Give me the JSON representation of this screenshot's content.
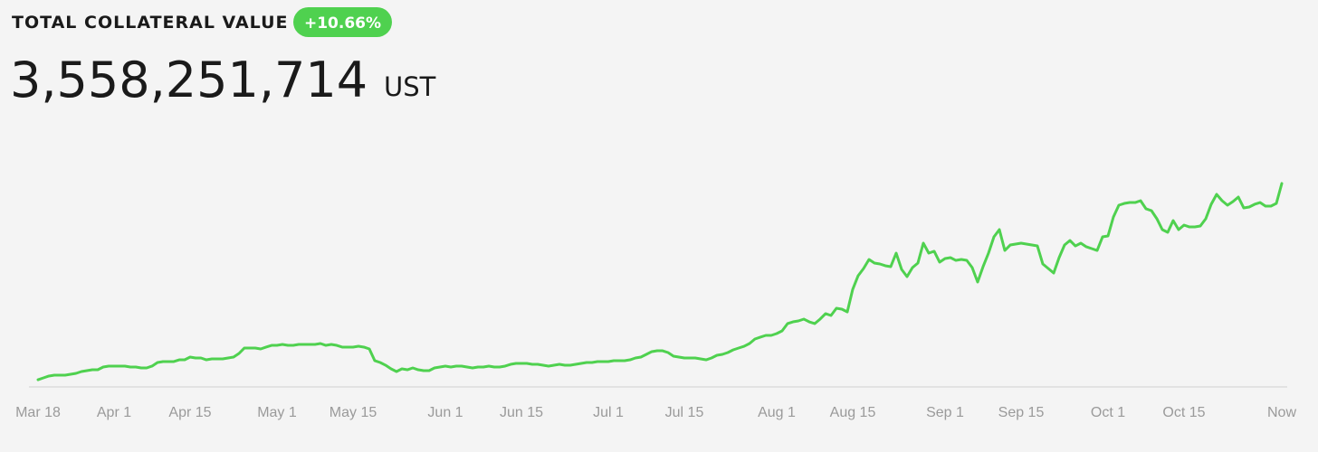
{
  "title": "TOTAL COLLATERAL VALUE",
  "change": "+10.66%",
  "total": "3,558,251,714",
  "unit": "UST",
  "chart_data": {
    "type": "line",
    "color": "#4fd14f",
    "ylim": [
      0,
      4000
    ],
    "categories": [
      "Mar 18",
      null,
      null,
      null,
      null,
      null,
      null,
      null,
      null,
      null,
      null,
      null,
      null,
      null,
      "Apr 1",
      null,
      null,
      null,
      null,
      null,
      null,
      null,
      null,
      null,
      null,
      null,
      null,
      null,
      "Apr 15",
      null,
      null,
      null,
      null,
      null,
      null,
      null,
      null,
      null,
      null,
      null,
      null,
      null,
      null,
      null,
      "May 1",
      null,
      null,
      null,
      null,
      null,
      null,
      null,
      null,
      null,
      null,
      null,
      null,
      null,
      "May 15",
      null,
      null,
      null,
      null,
      null,
      null,
      null,
      null,
      null,
      null,
      null,
      null,
      null,
      null,
      null,
      null,
      "Jun 1",
      null,
      null,
      null,
      null,
      null,
      null,
      null,
      null,
      null,
      null,
      null,
      null,
      null,
      "Jun 15",
      null,
      null,
      null,
      null,
      null,
      null,
      null,
      null,
      null,
      null,
      null,
      null,
      null,
      null,
      null,
      "Jul 1",
      null,
      null,
      null,
      null,
      null,
      null,
      null,
      null,
      null,
      null,
      null,
      null,
      null,
      "Jul 15",
      null,
      null,
      null,
      null,
      null,
      null,
      null,
      null,
      null,
      null,
      null,
      null,
      null,
      null,
      null,
      null,
      "Aug 1",
      null,
      null,
      null,
      null,
      null,
      null,
      null,
      null,
      null,
      null,
      null,
      null,
      null,
      "Aug 15",
      null,
      null,
      null,
      null,
      null,
      null,
      null,
      null,
      null,
      null,
      null,
      null,
      null,
      null,
      null,
      null,
      "Sep 1",
      null,
      null,
      null,
      null,
      null,
      null,
      null,
      null,
      null,
      null,
      null,
      null,
      null,
      "Sep 15",
      null,
      null,
      null,
      null,
      null,
      null,
      null,
      null,
      null,
      null,
      null,
      null,
      null,
      null,
      null,
      "Oct 1",
      null,
      null,
      null,
      null,
      null,
      null,
      null,
      null,
      null,
      null,
      null,
      null,
      null,
      "Oct 15",
      null,
      null,
      null,
      null,
      null,
      null,
      null,
      null,
      null,
      null,
      null,
      null,
      null,
      null,
      null,
      null,
      null,
      "Now"
    ],
    "values": [
      126,
      158,
      190,
      206,
      206,
      206,
      221,
      237,
      269,
      285,
      300,
      300,
      348,
      364,
      364,
      364,
      364,
      348,
      348,
      332,
      332,
      364,
      427,
      443,
      443,
      443,
      474,
      474,
      522,
      506,
      506,
      474,
      490,
      490,
      490,
      506,
      522,
      585,
      680,
      680,
      680,
      664,
      696,
      727,
      727,
      743,
      727,
      727,
      743,
      743,
      743,
      743,
      759,
      727,
      743,
      727,
      696,
      696,
      696,
      711,
      696,
      664,
      459,
      427,
      379,
      316,
      269,
      316,
      300,
      332,
      300,
      285,
      285,
      332,
      348,
      364,
      348,
      364,
      364,
      348,
      332,
      348,
      348,
      364,
      348,
      348,
      364,
      395,
      411,
      411,
      411,
      395,
      395,
      379,
      364,
      379,
      395,
      379,
      379,
      395,
      411,
      427,
      427,
      443,
      443,
      443,
      459,
      459,
      459,
      474,
      506,
      522,
      569,
      617,
      632,
      632,
      601,
      538,
      522,
      506,
      506,
      506,
      490,
      474,
      506,
      553,
      569,
      601,
      648,
      680,
      711,
      759,
      838,
      870,
      901,
      901,
      933,
      980,
      1107,
      1138,
      1154,
      1186,
      1138,
      1107,
      1186,
      1281,
      1249,
      1375,
      1360,
      1312,
      1707,
      1945,
      2071,
      2229,
      2166,
      2150,
      2119,
      2103,
      2340,
      2055,
      1929,
      2087,
      2166,
      2514,
      2340,
      2372,
      2182,
      2245,
      2261,
      2213,
      2229,
      2213,
      2087,
      1834,
      2103,
      2340,
      2624,
      2751,
      2387,
      2482,
      2498,
      2514,
      2498,
      2482,
      2466,
      2150,
      2071,
      1992,
      2261,
      2482,
      2561,
      2466,
      2514,
      2451,
      2419,
      2387,
      2624,
      2640,
      2972,
      3178,
      3209,
      3225,
      3225,
      3257,
      3115,
      3083,
      2941,
      2751,
      2704,
      2909,
      2751,
      2830,
      2798,
      2798,
      2814,
      2941,
      3194,
      3368,
      3257,
      3178,
      3241,
      3320,
      3130,
      3146,
      3194,
      3225,
      3162,
      3162,
      3209,
      3558
    ]
  }
}
